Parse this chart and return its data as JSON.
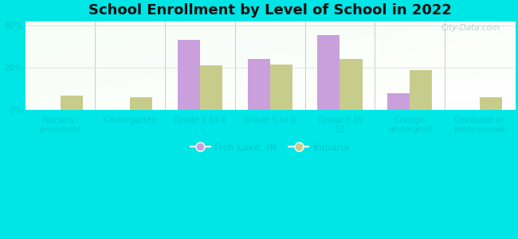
{
  "title": "School Enrollment by Level of School in 2022",
  "categories": [
    "Nursery,\npreschool",
    "Kindergarten",
    "Grade 1 to 4",
    "Grade 5 to 8",
    "Grade 9 to\n12",
    "College\nundergrad",
    "Graduate or\nprofessional"
  ],
  "fish_lake": [
    0.0,
    0.0,
    33.0,
    24.0,
    35.5,
    8.0,
    0.0
  ],
  "indiana": [
    7.0,
    6.0,
    21.0,
    21.5,
    24.0,
    19.0,
    6.0
  ],
  "fish_lake_color": "#c9a0dc",
  "indiana_color": "#c8cc8a",
  "background_outer": "#00e5e5",
  "tick_color": "#00cccc",
  "ylim": [
    0,
    42
  ],
  "yticks": [
    0,
    20,
    40
  ],
  "ytick_labels": [
    "0%",
    "20%",
    "40%"
  ],
  "legend_fish_lake": "Fish Lake, IN",
  "legend_indiana": "Indiana",
  "bar_width": 0.32,
  "watermark": "City-Data.com"
}
